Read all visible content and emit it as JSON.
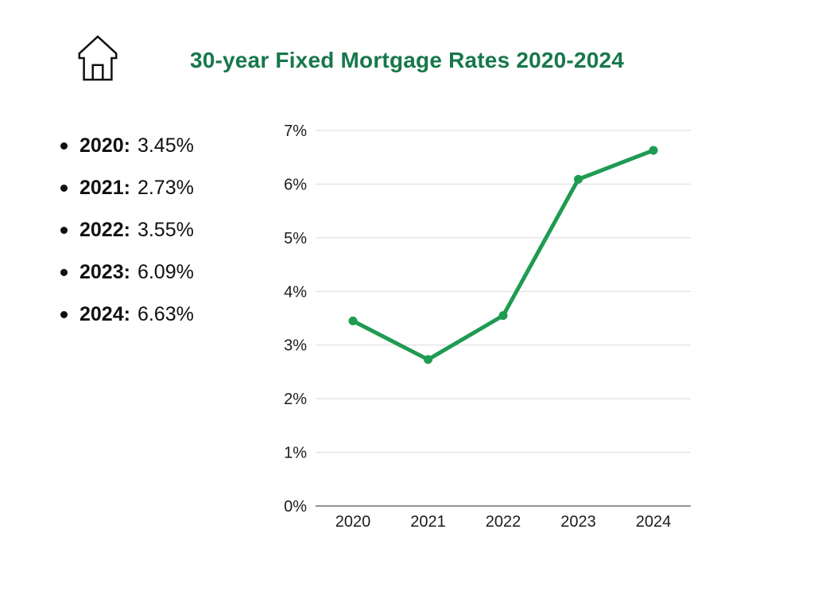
{
  "header": {
    "title": "30-year Fixed Mortgage Rates 2020-2024",
    "icon": "home-icon"
  },
  "list": {
    "items": [
      {
        "label": "2020:",
        "value": "3.45%"
      },
      {
        "label": "2021:",
        "value": "2.73%"
      },
      {
        "label": "2022:",
        "value": "3.55%"
      },
      {
        "label": "2023:",
        "value": "6.09%"
      },
      {
        "label": "2024:",
        "value": "6.63%"
      }
    ]
  },
  "chart_data": {
    "type": "line",
    "title": "30-year Fixed Mortgage Rates 2020-2024",
    "categories": [
      "2020",
      "2021",
      "2022",
      "2023",
      "2024"
    ],
    "values": [
      3.45,
      2.73,
      3.55,
      6.09,
      6.63
    ],
    "series_name": "30-year fixed mortgage rate",
    "xlabel": "",
    "ylabel": "",
    "ylim": [
      0,
      7
    ],
    "yticks": [
      0,
      1,
      2,
      3,
      4,
      5,
      6,
      7
    ],
    "ytick_labels": [
      "0%",
      "1%",
      "2%",
      "3%",
      "4%",
      "5%",
      "6%",
      "7%"
    ],
    "grid": true,
    "legend": false,
    "marker": "circle"
  },
  "colors": {
    "title_green": "#17784a",
    "line_green": "#1f9b52",
    "gridline": "#d9d9d9",
    "axis_line": "#707070",
    "tick_text": "#1c1c1c",
    "list_text": "#111111",
    "icon_stroke": "#111111",
    "background": "#ffffff"
  }
}
